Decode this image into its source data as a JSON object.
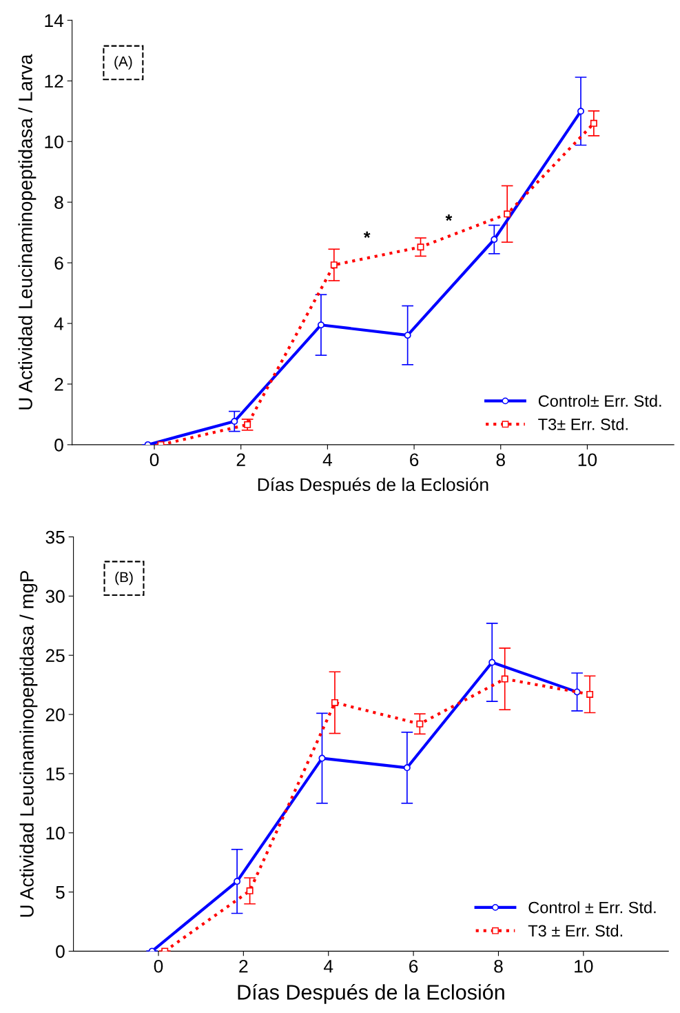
{
  "chart_data": [
    {
      "type": "line",
      "xlabel": "Días Después de la Eclosión",
      "ylabel": "U Actividad Leucinaminopeptidasa / Larva",
      "xlim": [
        -1.9,
        12
      ],
      "xticks": [
        0,
        2,
        4,
        6,
        8,
        10
      ],
      "ylim": [
        0,
        14
      ],
      "yticks": [
        0,
        2,
        4,
        6,
        8,
        10,
        12,
        14
      ],
      "grid": false,
      "legend": "bottom right",
      "annotations": [
        "(A)",
        "*",
        "*"
      ],
      "series": [
        {
          "name": "Control± Err. Std.",
          "color": "#0000ff",
          "marker": "circle",
          "line_style": "solid",
          "x": [
            -0.15,
            1.85,
            3.85,
            5.85,
            7.85,
            9.85
          ],
          "values": [
            0,
            0.77,
            3.95,
            3.61,
            6.77,
            11.0
          ],
          "errors": [
            null,
            0.33,
            1.0,
            0.97,
            0.47,
            1.12
          ]
        },
        {
          "name": "T3± Err. Std.",
          "color": "#ff0000",
          "marker": "square",
          "line_style": "dotted",
          "x": [
            0.15,
            2.15,
            4.15,
            6.15,
            8.15,
            10.15
          ],
          "values": [
            0,
            0.66,
            5.93,
            6.52,
            7.61,
            10.6
          ],
          "errors": [
            null,
            0.18,
            0.52,
            0.3,
            0.93,
            0.41
          ]
        }
      ]
    },
    {
      "type": "line",
      "xlabel": "Días Después de la Eclosión",
      "ylabel": "U Actividad Leucinaminopeptidasa / mgP",
      "xlim": [
        -2,
        12
      ],
      "xticks": [
        0,
        2,
        4,
        6,
        8,
        10
      ],
      "ylim": [
        0,
        35
      ],
      "yticks": [
        0,
        5,
        10,
        15,
        20,
        25,
        30,
        35
      ],
      "grid": false,
      "legend": "bottom right",
      "annotations": [
        "(B)"
      ],
      "series": [
        {
          "name": "Control ± Err. Std.",
          "color": "#0000ff",
          "marker": "circle",
          "line_style": "solid",
          "x": [
            -0.15,
            1.85,
            3.85,
            5.85,
            7.85,
            9.85
          ],
          "values": [
            0,
            5.9,
            16.3,
            15.5,
            24.4,
            21.9
          ],
          "errors": [
            null,
            2.7,
            3.8,
            3.0,
            3.3,
            1.6
          ]
        },
        {
          "name": "T3 ± Err. Std.",
          "color": "#ff0000",
          "marker": "square",
          "line_style": "dotted",
          "x": [
            0.15,
            2.15,
            4.15,
            6.15,
            8.15,
            10.15
          ],
          "values": [
            0,
            5.1,
            21.0,
            19.2,
            23.0,
            21.7
          ],
          "errors": [
            null,
            1.1,
            2.6,
            0.85,
            2.6,
            1.55
          ]
        }
      ]
    }
  ]
}
